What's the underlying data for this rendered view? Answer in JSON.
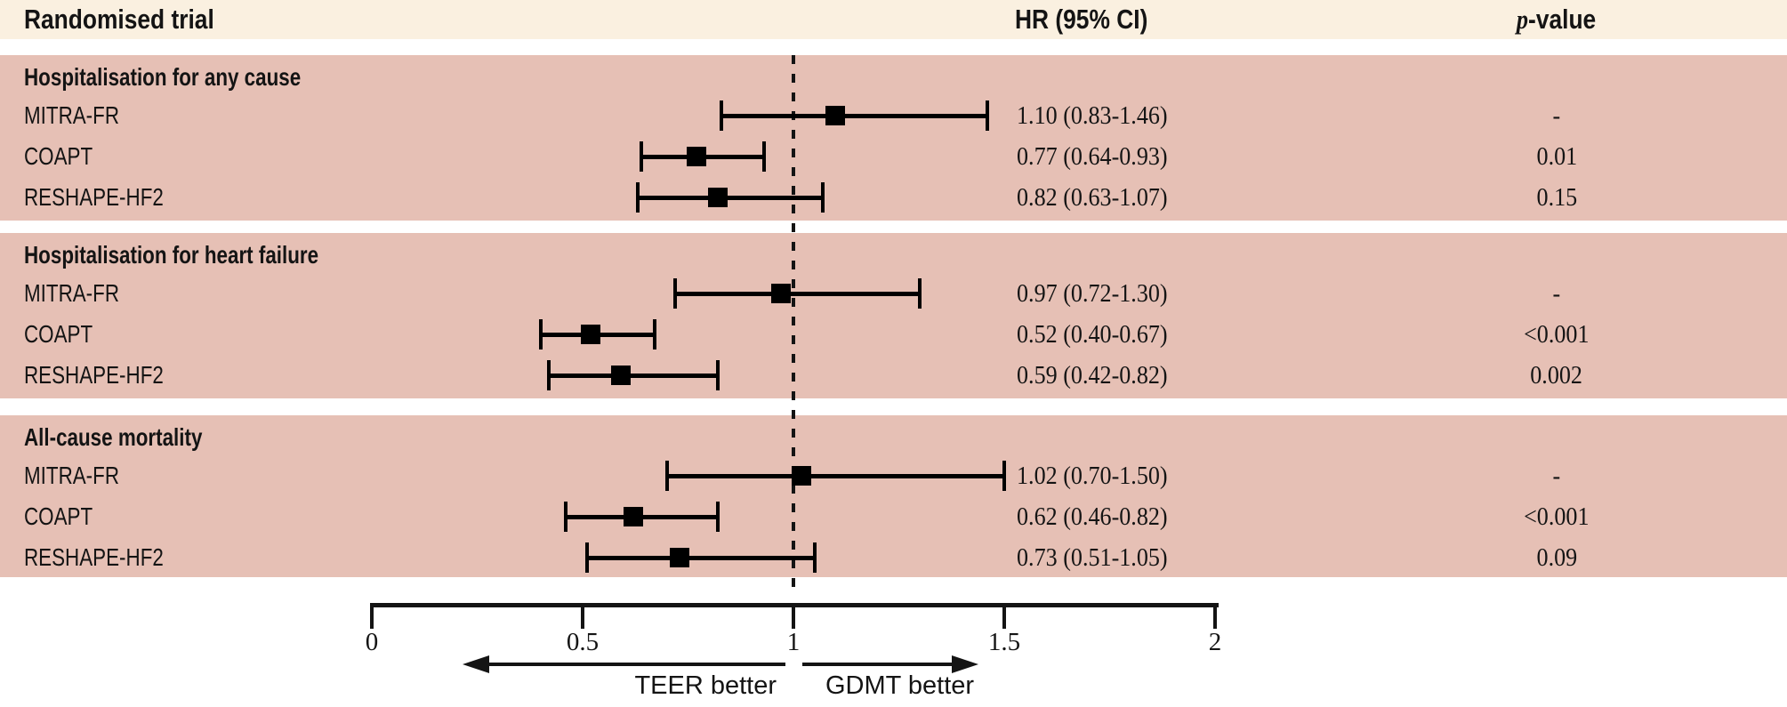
{
  "header": {
    "trial_col": "Randomised trial",
    "hr_col": "HR (95% CI)",
    "p_col_italic": "p",
    "p_col_rest": "-value"
  },
  "colors": {
    "header_band": "#faf0e0",
    "section_band": "#e6c0b5",
    "ink": "#141414",
    "marker": "#000000"
  },
  "chart_data": {
    "type": "forest",
    "title": "",
    "xlim": [
      0,
      2
    ],
    "x_ticks": [
      0,
      0.5,
      1,
      1.5,
      2
    ],
    "x_tick_labels": [
      "0",
      "0.5",
      "1",
      "1.5",
      "2"
    ],
    "reference_line": 1,
    "direction_labels": {
      "left": "TEER better",
      "right": "GDMT better"
    },
    "columns": [
      "Randomised trial",
      "HR (95% CI)",
      "p-value"
    ],
    "groups": [
      {
        "title": "Hospitalisation for any cause",
        "rows": [
          {
            "trial": "MITRA-FR",
            "hr": 1.1,
            "ci_low": 0.83,
            "ci_high": 1.46,
            "hr_ci_text": "1.10 (0.83-1.46)",
            "p_value": "-"
          },
          {
            "trial": "COAPT",
            "hr": 0.77,
            "ci_low": 0.64,
            "ci_high": 0.93,
            "hr_ci_text": "0.77 (0.64-0.93)",
            "p_value": "0.01"
          },
          {
            "trial": "RESHAPE-HF2",
            "hr": 0.82,
            "ci_low": 0.63,
            "ci_high": 1.07,
            "hr_ci_text": "0.82 (0.63-1.07)",
            "p_value": "0.15"
          }
        ]
      },
      {
        "title": "Hospitalisation for heart failure",
        "rows": [
          {
            "trial": "MITRA-FR",
            "hr": 0.97,
            "ci_low": 0.72,
            "ci_high": 1.3,
            "hr_ci_text": "0.97 (0.72-1.30)",
            "p_value": "-"
          },
          {
            "trial": "COAPT",
            "hr": 0.52,
            "ci_low": 0.4,
            "ci_high": 0.67,
            "hr_ci_text": "0.52 (0.40-0.67)",
            "p_value": "<0.001"
          },
          {
            "trial": "RESHAPE-HF2",
            "hr": 0.59,
            "ci_low": 0.42,
            "ci_high": 0.82,
            "hr_ci_text": "0.59 (0.42-0.82)",
            "p_value": "0.002"
          }
        ]
      },
      {
        "title": "All-cause mortality",
        "rows": [
          {
            "trial": "MITRA-FR",
            "hr": 1.02,
            "ci_low": 0.7,
            "ci_high": 1.5,
            "hr_ci_text": "1.02 (0.70-1.50)",
            "p_value": "-"
          },
          {
            "trial": "COAPT",
            "hr": 0.62,
            "ci_low": 0.46,
            "ci_high": 0.82,
            "hr_ci_text": "0.62 (0.46-0.82)",
            "p_value": "<0.001"
          },
          {
            "trial": "RESHAPE-HF2",
            "hr": 0.73,
            "ci_low": 0.51,
            "ci_high": 1.05,
            "hr_ci_text": "0.73 (0.51-1.05)",
            "p_value": "0.09"
          }
        ]
      }
    ]
  }
}
